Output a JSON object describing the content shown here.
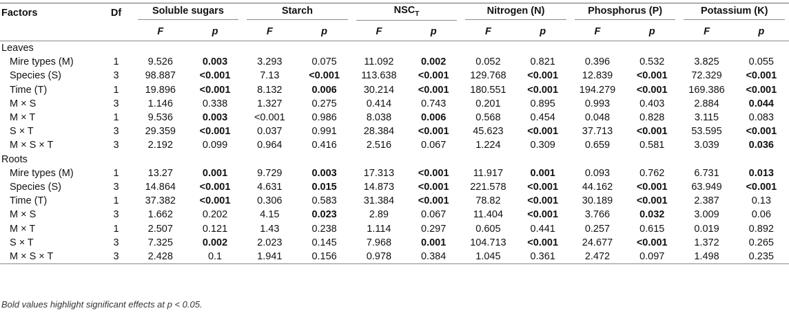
{
  "header": {
    "factors": "Factors",
    "df": "Df",
    "groups": [
      {
        "label": "Soluble sugars",
        "sub": ""
      },
      {
        "label": "Starch",
        "sub": ""
      },
      {
        "label": "NSC",
        "sub": "T"
      },
      {
        "label": "Nitrogen (N)",
        "sub": ""
      },
      {
        "label": "Phosphorus (P)",
        "sub": ""
      },
      {
        "label": "Potassium (K)",
        "sub": ""
      }
    ],
    "f_label": "F",
    "p_label": "p"
  },
  "sections": [
    {
      "title": "Leaves",
      "rows": [
        {
          "factor": "Mire types (M)",
          "df": "1",
          "cells": [
            [
              "9.526",
              "0.003",
              true
            ],
            [
              "3.293",
              "0.075",
              false
            ],
            [
              "11.092",
              "0.002",
              true
            ],
            [
              "0.052",
              "0.821",
              false
            ],
            [
              "0.396",
              "0.532",
              false
            ],
            [
              "3.825",
              "0.055",
              false
            ]
          ]
        },
        {
          "factor": "Species (S)",
          "df": "3",
          "cells": [
            [
              "98.887",
              "<0.001",
              true
            ],
            [
              "7.13",
              "<0.001",
              true
            ],
            [
              "113.638",
              "<0.001",
              true
            ],
            [
              "129.768",
              "<0.001",
              true
            ],
            [
              "12.839",
              "<0.001",
              true
            ],
            [
              "72.329",
              "<0.001",
              true
            ]
          ]
        },
        {
          "factor": "Time (T)",
          "df": "1",
          "cells": [
            [
              "19.896",
              "<0.001",
              true
            ],
            [
              "8.132",
              "0.006",
              true
            ],
            [
              "30.214",
              "<0.001",
              true
            ],
            [
              "180.551",
              "<0.001",
              true
            ],
            [
              "194.279",
              "<0.001",
              true
            ],
            [
              "169.386",
              "<0.001",
              true
            ]
          ]
        },
        {
          "factor": "M × S",
          "df": "3",
          "cells": [
            [
              "1.146",
              "0.338",
              false
            ],
            [
              "1.327",
              "0.275",
              false
            ],
            [
              "0.414",
              "0.743",
              false
            ],
            [
              "0.201",
              "0.895",
              false
            ],
            [
              "0.993",
              "0.403",
              false
            ],
            [
              "2.884",
              "0.044",
              true
            ]
          ]
        },
        {
          "factor": "M × T",
          "df": "1",
          "cells": [
            [
              "9.536",
              "0.003",
              true
            ],
            [
              "<0.001",
              "0.986",
              false
            ],
            [
              "8.038",
              "0.006",
              true
            ],
            [
              "0.568",
              "0.454",
              false
            ],
            [
              "0.048",
              "0.828",
              false
            ],
            [
              "3.115",
              "0.083",
              false
            ]
          ]
        },
        {
          "factor": "S × T",
          "df": "3",
          "cells": [
            [
              "29.359",
              "<0.001",
              true
            ],
            [
              "0.037",
              "0.991",
              false
            ],
            [
              "28.384",
              "<0.001",
              true
            ],
            [
              "45.623",
              "<0.001",
              true
            ],
            [
              "37.713",
              "<0.001",
              true
            ],
            [
              "53.595",
              "<0.001",
              true
            ]
          ]
        },
        {
          "factor": "M × S × T",
          "df": "3",
          "cells": [
            [
              "2.192",
              "0.099",
              false
            ],
            [
              "0.964",
              "0.416",
              false
            ],
            [
              "2.516",
              "0.067",
              false
            ],
            [
              "1.224",
              "0.309",
              false
            ],
            [
              "0.659",
              "0.581",
              false
            ],
            [
              "3.039",
              "0.036",
              true
            ]
          ]
        }
      ]
    },
    {
      "title": "Roots",
      "rows": [
        {
          "factor": "Mire types (M)",
          "df": "1",
          "cells": [
            [
              "13.27",
              "0.001",
              true
            ],
            [
              "9.729",
              "0.003",
              true
            ],
            [
              "17.313",
              "<0.001",
              true
            ],
            [
              "11.917",
              "0.001",
              true
            ],
            [
              "0.093",
              "0.762",
              false
            ],
            [
              "6.731",
              "0.013",
              true
            ]
          ]
        },
        {
          "factor": "Species (S)",
          "df": "3",
          "cells": [
            [
              "14.864",
              "<0.001",
              true
            ],
            [
              "4.631",
              "0.015",
              true
            ],
            [
              "14.873",
              "<0.001",
              true
            ],
            [
              "221.578",
              "<0.001",
              true
            ],
            [
              "44.162",
              "<0.001",
              true
            ],
            [
              "63.949",
              "<0.001",
              true
            ]
          ]
        },
        {
          "factor": "Time (T)",
          "df": "1",
          "cells": [
            [
              "37.382",
              "<0.001",
              true
            ],
            [
              "0.306",
              "0.583",
              false
            ],
            [
              "31.384",
              "<0.001",
              true
            ],
            [
              "78.82",
              "<0.001",
              true
            ],
            [
              "30.189",
              "<0.001",
              true
            ],
            [
              "2.387",
              "0.13",
              false
            ]
          ]
        },
        {
          "factor": "M × S",
          "df": "3",
          "cells": [
            [
              "1.662",
              "0.202",
              false
            ],
            [
              "4.15",
              "0.023",
              true
            ],
            [
              "2.89",
              "0.067",
              false
            ],
            [
              "11.404",
              "<0.001",
              true
            ],
            [
              "3.766",
              "0.032",
              true
            ],
            [
              "3.009",
              "0.06",
              false
            ]
          ]
        },
        {
          "factor": "M × T",
          "df": "1",
          "cells": [
            [
              "2.507",
              "0.121",
              false
            ],
            [
              "1.43",
              "0.238",
              false
            ],
            [
              "1.114",
              "0.297",
              false
            ],
            [
              "0.605",
              "0.441",
              false
            ],
            [
              "0.257",
              "0.615",
              false
            ],
            [
              "0.019",
              "0.892",
              false
            ]
          ]
        },
        {
          "factor": "S × T",
          "df": "3",
          "cells": [
            [
              "7.325",
              "0.002",
              true
            ],
            [
              "2.023",
              "0.145",
              false
            ],
            [
              "7.968",
              "0.001",
              true
            ],
            [
              "104.713",
              "<0.001",
              true
            ],
            [
              "24.677",
              "<0.001",
              true
            ],
            [
              "1.372",
              "0.265",
              false
            ]
          ]
        },
        {
          "factor": "M × S × T",
          "df": "3",
          "cells": [
            [
              "2.428",
              "0.1",
              false
            ],
            [
              "1.941",
              "0.156",
              false
            ],
            [
              "0.978",
              "0.384",
              false
            ],
            [
              "1.045",
              "0.361",
              false
            ],
            [
              "2.472",
              "0.097",
              false
            ],
            [
              "1.498",
              "0.235",
              false
            ]
          ]
        }
      ]
    }
  ],
  "footnote": "Bold values highlight significant effects at p < 0.05."
}
